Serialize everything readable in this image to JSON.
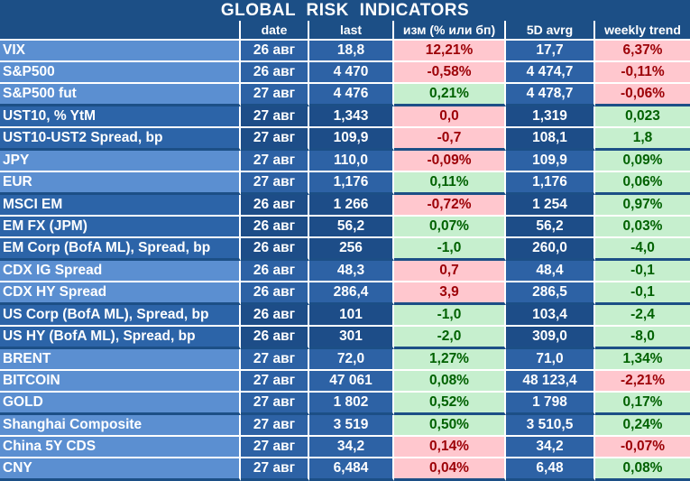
{
  "title": "GLOBAL   RISK   INDICATORS",
  "columns": [
    "",
    "date",
    "last",
    "изм (% или бп)",
    "5D avrg",
    "weekly trend"
  ],
  "groups": [
    {
      "shade": "light",
      "rows": [
        {
          "name": "VIX",
          "date": "26 авг",
          "last": "18,8",
          "chg": "12,21%",
          "chg_sign": "neg",
          "avg": "17,7",
          "trend": "6,37%",
          "trend_sign": "neg"
        },
        {
          "name": "S&P500",
          "date": "26 авг",
          "last": "4 470",
          "chg": "-0,58%",
          "chg_sign": "neg",
          "avg": "4 474,7",
          "trend": "-0,11%",
          "trend_sign": "neg"
        },
        {
          "name": "S&P500 fut",
          "date": "27 авг",
          "last": "4 476",
          "chg": "0,21%",
          "chg_sign": "pos",
          "avg": "4 478,7",
          "trend": "-0,06%",
          "trend_sign": "neg"
        }
      ]
    },
    {
      "shade": "dark",
      "rows": [
        {
          "name": "UST10, % YtM",
          "date": "27 авг",
          "last": "1,343",
          "chg": "0,0",
          "chg_sign": "neg",
          "avg": "1,319",
          "trend": "0,023",
          "trend_sign": "pos"
        },
        {
          "name": "UST10-UST2 Spread, bp",
          "date": "27 авг",
          "last": "109,9",
          "chg": "-0,7",
          "chg_sign": "neg",
          "avg": "108,1",
          "trend": "1,8",
          "trend_sign": "pos"
        }
      ]
    },
    {
      "shade": "light",
      "rows": [
        {
          "name": "JPY",
          "date": "27 авг",
          "last": "110,0",
          "chg": "-0,09%",
          "chg_sign": "neg",
          "avg": "109,9",
          "trend": "0,09%",
          "trend_sign": "pos"
        },
        {
          "name": "EUR",
          "date": "27 авг",
          "last": "1,176",
          "chg": "0,11%",
          "chg_sign": "pos",
          "avg": "1,176",
          "trend": "0,06%",
          "trend_sign": "pos"
        }
      ]
    },
    {
      "shade": "dark",
      "rows": [
        {
          "name": "MSCI EM",
          "date": "26 авг",
          "last": "1 266",
          "chg": "-0,72%",
          "chg_sign": "neg",
          "avg": "1 254",
          "trend": "0,97%",
          "trend_sign": "pos"
        },
        {
          "name": "EM FX (JPM)",
          "date": "26 авг",
          "last": "56,2",
          "chg": "0,07%",
          "chg_sign": "pos",
          "avg": "56,2",
          "trend": "0,03%",
          "trend_sign": "pos"
        },
        {
          "name": "EM Corp (BofA ML), Spread, bp",
          "date": "26 авг",
          "last": "256",
          "chg": "-1,0",
          "chg_sign": "pos",
          "avg": "260,0",
          "trend": "-4,0",
          "trend_sign": "pos"
        }
      ]
    },
    {
      "shade": "light",
      "rows": [
        {
          "name": "CDX IG Spread",
          "date": "26 авг",
          "last": "48,3",
          "chg": "0,7",
          "chg_sign": "neg",
          "avg": "48,4",
          "trend": "-0,1",
          "trend_sign": "pos"
        },
        {
          "name": "CDX HY Spread",
          "date": "26 авг",
          "last": "286,4",
          "chg": "3,9",
          "chg_sign": "neg",
          "avg": "286,5",
          "trend": "-0,1",
          "trend_sign": "pos"
        }
      ]
    },
    {
      "shade": "dark",
      "rows": [
        {
          "name": "US Corp (BofA ML), Spread, bp",
          "date": "26 авг",
          "last": "101",
          "chg": "-1,0",
          "chg_sign": "pos",
          "avg": "103,4",
          "trend": "-2,4",
          "trend_sign": "pos"
        },
        {
          "name": "US HY (BofA ML), Spread, bp",
          "date": "26 авг",
          "last": "301",
          "chg": "-2,0",
          "chg_sign": "pos",
          "avg": "309,0",
          "trend": "-8,0",
          "trend_sign": "pos"
        }
      ]
    },
    {
      "shade": "light",
      "rows": [
        {
          "name": "BRENT",
          "date": "27 авг",
          "last": "72,0",
          "chg": "1,27%",
          "chg_sign": "pos",
          "avg": "71,0",
          "trend": "1,34%",
          "trend_sign": "pos"
        },
        {
          "name": "BITCOIN",
          "date": "27 авг",
          "last": "47 061",
          "chg": "0,08%",
          "chg_sign": "pos",
          "avg": "48 123,4",
          "trend": "-2,21%",
          "trend_sign": "neg"
        },
        {
          "name": "GOLD",
          "date": "27 авг",
          "last": "1 802",
          "chg": "0,52%",
          "chg_sign": "pos",
          "avg": "1 798",
          "trend": "0,17%",
          "trend_sign": "pos"
        }
      ]
    },
    {
      "shade": "light",
      "rows": [
        {
          "name": "Shanghai Composite",
          "date": "27 авг",
          "last": "3 519",
          "chg": "0,50%",
          "chg_sign": "pos",
          "avg": "3 510,5",
          "trend": "0,24%",
          "trend_sign": "pos"
        },
        {
          "name": "China 5Y CDS",
          "date": "27 авг",
          "last": "34,2",
          "chg": "0,14%",
          "chg_sign": "neg",
          "avg": "34,2",
          "trend": "-0,07%",
          "trend_sign": "neg"
        },
        {
          "name": "CNY",
          "date": "27 авг",
          "last": "6,484",
          "chg": "0,04%",
          "chg_sign": "neg",
          "avg": "6,48",
          "trend": "0,08%",
          "trend_sign": "pos"
        }
      ]
    }
  ]
}
